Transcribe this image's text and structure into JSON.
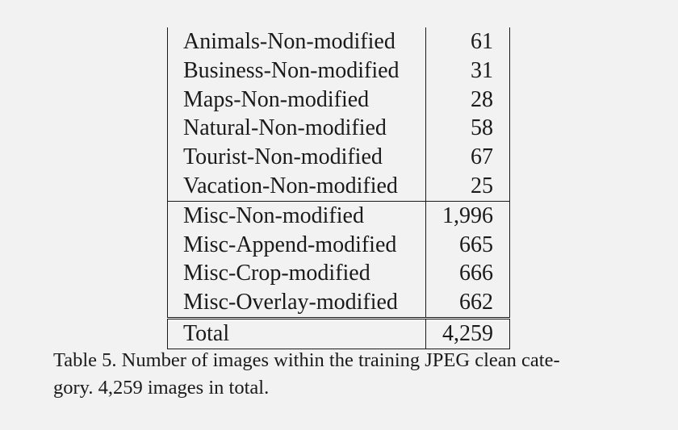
{
  "table": {
    "rows_group1": [
      {
        "label": "Animals-Non-modified",
        "value": "61"
      },
      {
        "label": "Business-Non-modified",
        "value": "31"
      },
      {
        "label": "Maps-Non-modified",
        "value": "28"
      },
      {
        "label": "Natural-Non-modified",
        "value": "58"
      },
      {
        "label": "Tourist-Non-modified",
        "value": "67"
      },
      {
        "label": "Vacation-Non-modified",
        "value": "25"
      }
    ],
    "rows_group2": [
      {
        "label": "Misc-Non-modified",
        "value": "1,996"
      },
      {
        "label": "Misc-Append-modified",
        "value": "665"
      },
      {
        "label": "Misc-Crop-modified",
        "value": "666"
      },
      {
        "label": "Misc-Overlay-modified",
        "value": "662"
      }
    ],
    "total": {
      "label": "Total",
      "value": "4,259"
    }
  },
  "caption": {
    "line1": "Table 5. Number of images within the training JPEG clean cate-",
    "line2": "gory. 4,259 images in total."
  }
}
